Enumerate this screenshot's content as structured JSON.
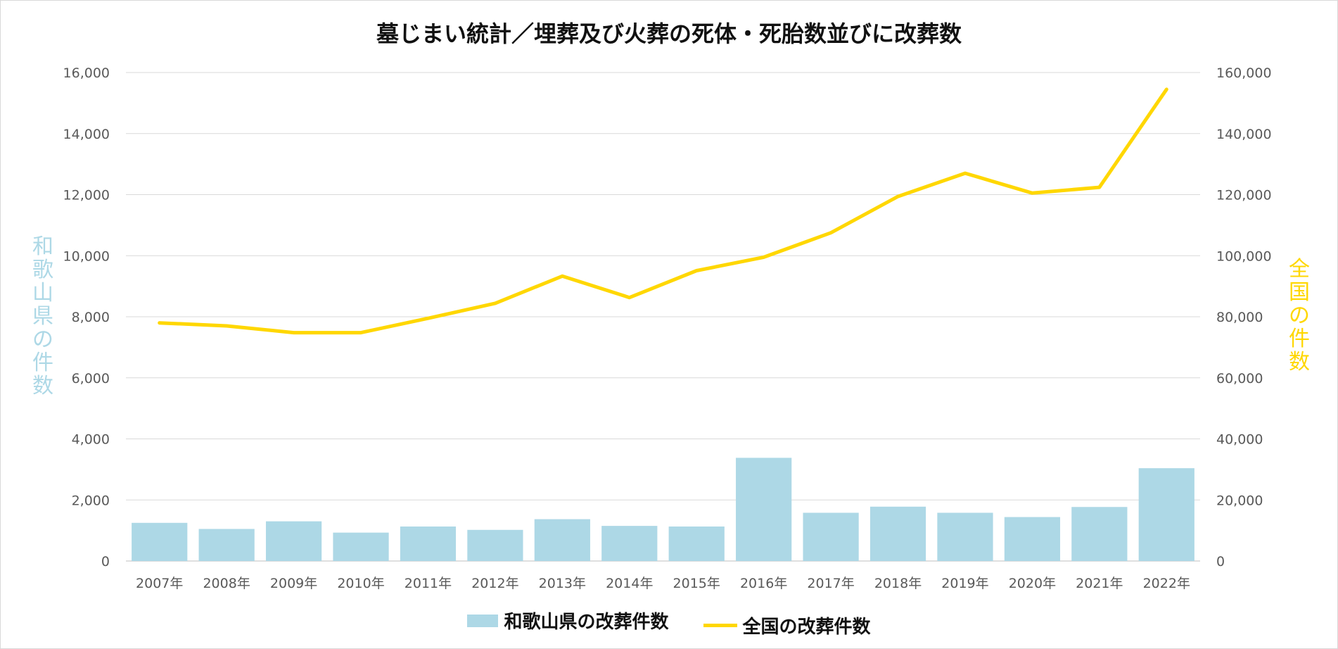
{
  "chart_data": {
    "type": "bar+line",
    "title": "墓じまい統計／埋葬及び火葬の死体・死胎数並びに改葬数",
    "categories": [
      "2007年",
      "2008年",
      "2009年",
      "2010年",
      "2011年",
      "2012年",
      "2013年",
      "2014年",
      "2015年",
      "2016年",
      "2017年",
      "2018年",
      "2019年",
      "2020年",
      "2021年",
      "2022年"
    ],
    "series": [
      {
        "name": "和歌山県の改葬件数",
        "type": "bar",
        "axis": "left",
        "color": "#add8e6",
        "values": [
          1250,
          1050,
          1300,
          930,
          1130,
          1020,
          1370,
          1150,
          1130,
          3380,
          1580,
          1780,
          1580,
          1440,
          1770,
          3040
        ]
      },
      {
        "name": "全国の改葬件数",
        "type": "line",
        "axis": "right",
        "color": "#ffd700",
        "values": [
          78000,
          77000,
          74800,
          74800,
          79500,
          84400,
          93300,
          86300,
          95100,
          99500,
          107500,
          119400,
          127000,
          120500,
          122400,
          154500
        ]
      }
    ],
    "yaxis_left": {
      "title": "和歌山県の件数",
      "ylim": [
        0,
        16000
      ],
      "ticks": [
        0,
        2000,
        4000,
        6000,
        8000,
        10000,
        12000,
        14000,
        16000
      ],
      "tick_labels": [
        "0",
        "2,000",
        "4,000",
        "6,000",
        "8,000",
        "10,000",
        "12,000",
        "14,000",
        "16,000"
      ]
    },
    "yaxis_right": {
      "title": "全国の件数",
      "ylim": [
        0,
        160000
      ],
      "ticks": [
        0,
        20000,
        40000,
        60000,
        80000,
        100000,
        120000,
        140000,
        160000
      ],
      "tick_labels": [
        "0",
        "20,000",
        "40,000",
        "60,000",
        "80,000",
        "100,000",
        "120,000",
        "140,000",
        "160,000"
      ]
    },
    "grid": true,
    "legend": "bottom"
  }
}
